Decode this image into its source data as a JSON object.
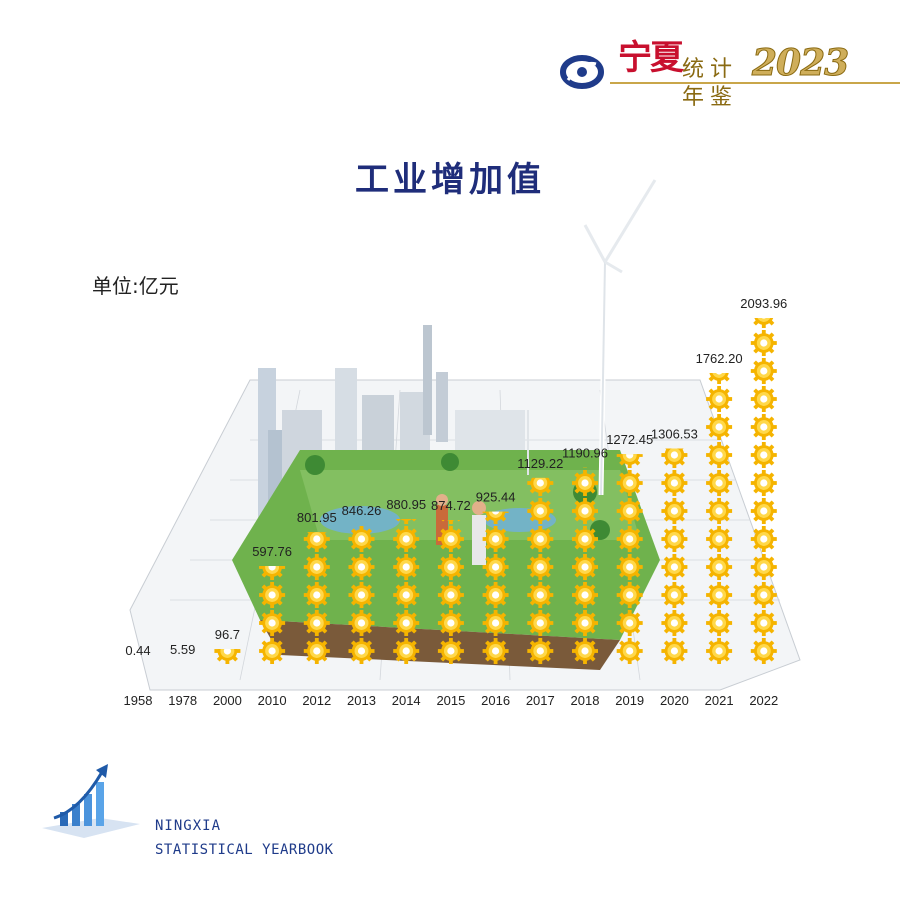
{
  "header": {
    "brand_ningxia": "宁夏",
    "brand_yearbook": "统计年鉴",
    "brand_year": "2023",
    "logo_icon": "ningxia-statistics-logo-icon"
  },
  "footer": {
    "line1": "NINGXIA",
    "line2": "STATISTICAL YEARBOOK",
    "logo_icon": "rising-bar-chart-arrow-icon"
  },
  "colors": {
    "title": "#1f2d7a",
    "gear_outer": "#f5b400",
    "gear_inner": "#ffd84a",
    "gear_hub": "#ffffff",
    "accent_gold": "#c9a64a"
  },
  "chart_data": {
    "type": "bar",
    "title": "工业增加值",
    "unit": "单位:亿元",
    "categories": [
      "1958",
      "1978",
      "2000",
      "2010",
      "2012",
      "2013",
      "2014",
      "2015",
      "2016",
      "2017",
      "2018",
      "2019",
      "2020",
      "2021",
      "2022"
    ],
    "values": [
      0.44,
      5.59,
      96.7,
      597.76,
      801.95,
      846.26,
      880.95,
      874.72,
      925.44,
      1129.22,
      1190.96,
      1272.45,
      1306.53,
      1762.2,
      2093.96
    ],
    "value_labels": [
      "0.44",
      "5.59",
      "96.7",
      "597.76",
      "801.95",
      "846.26",
      "880.95",
      "874.72",
      "925.44",
      "1129.22",
      "1190.96",
      "1272.45",
      "1306.53",
      "1762.20",
      "2093.96"
    ],
    "ylim": [
      0,
      2093.96
    ],
    "bar_style": "stacked gear icons",
    "grid": false,
    "legend": "none",
    "background_illustration": "industrial park on floating land block with wind turbine"
  }
}
